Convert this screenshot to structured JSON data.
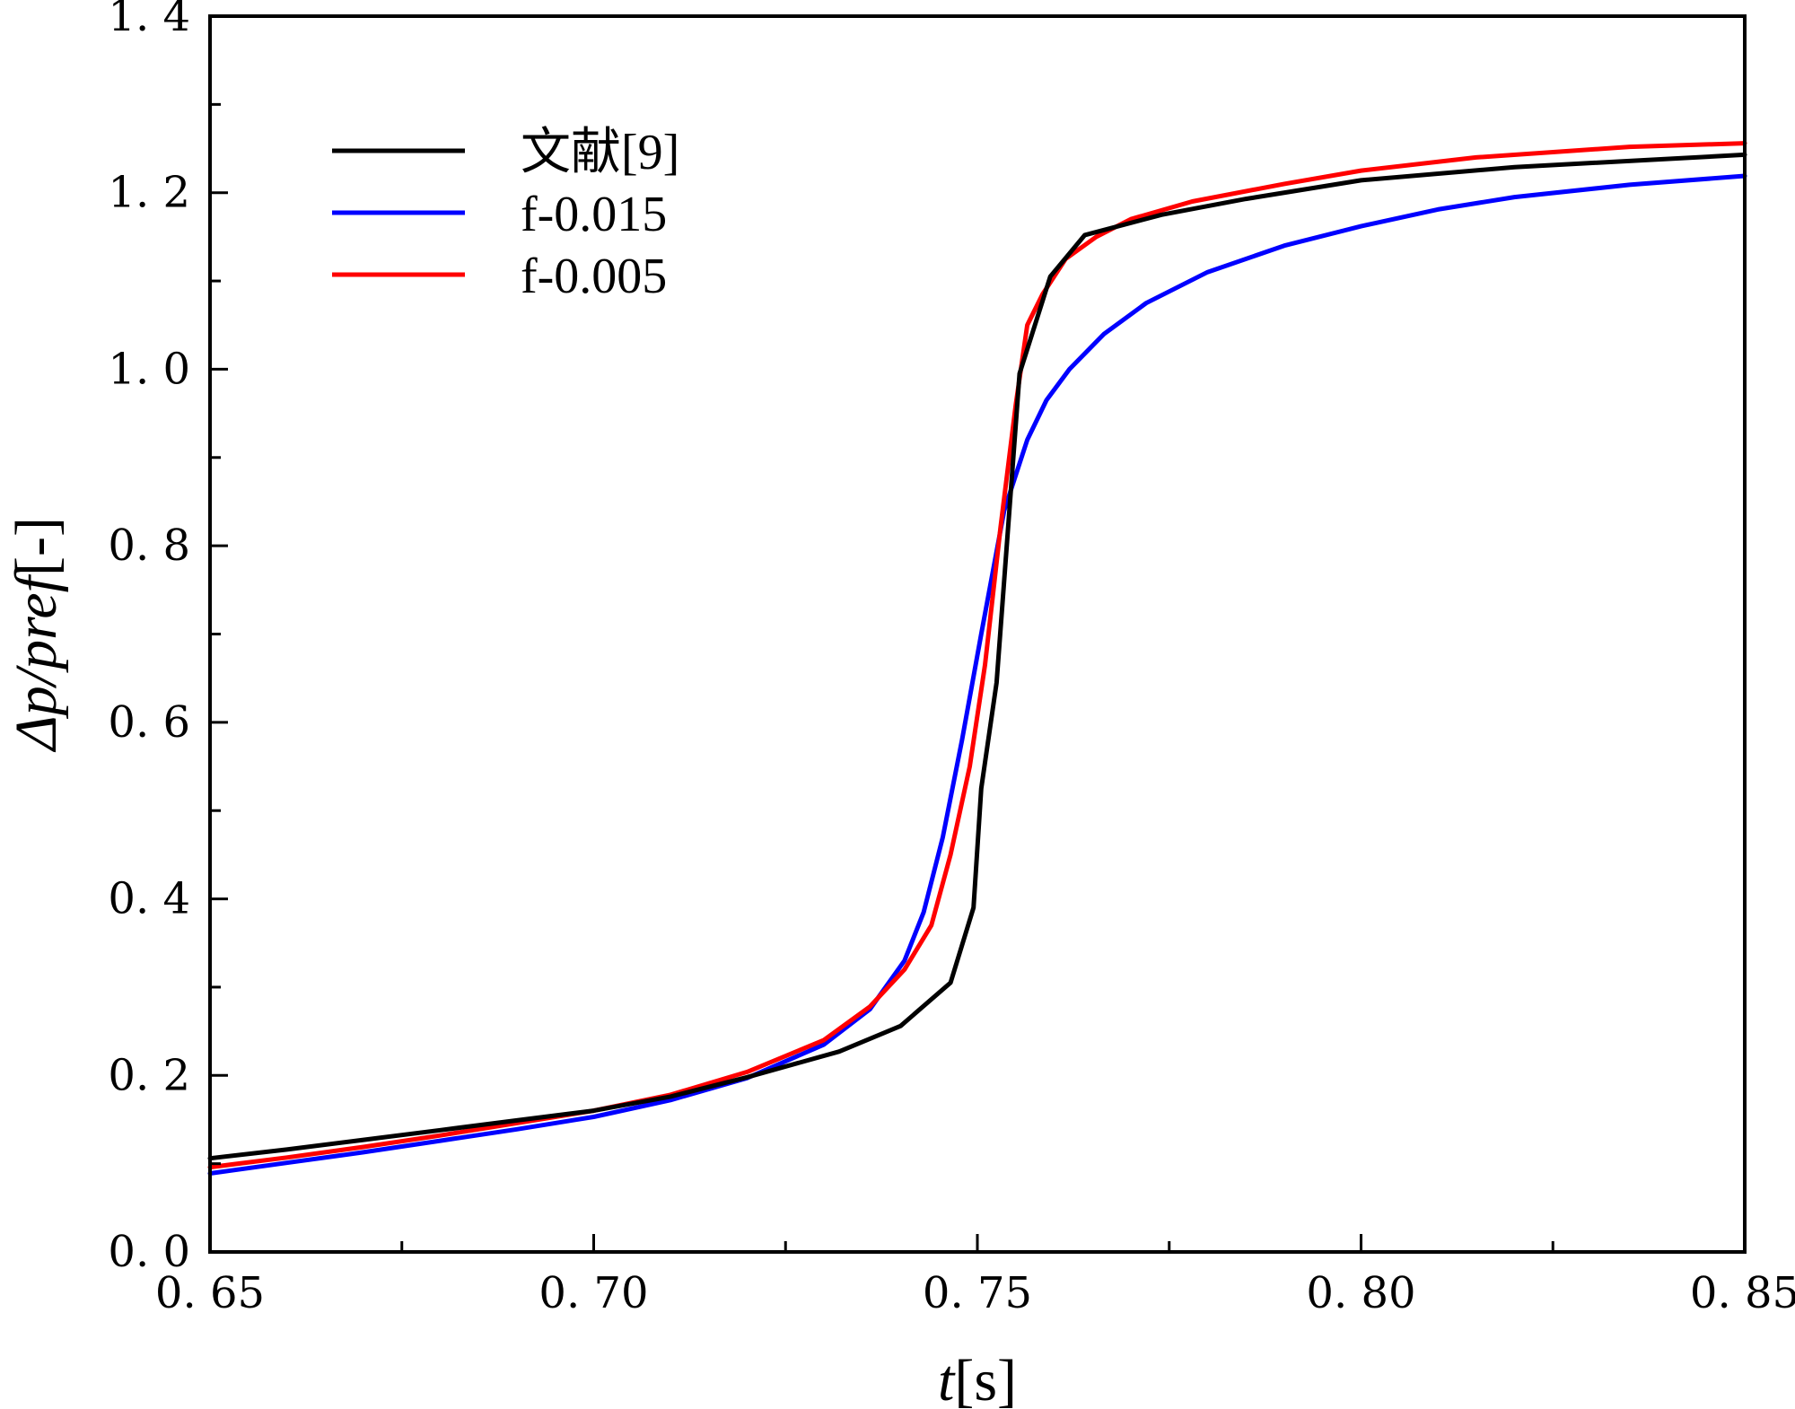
{
  "chart_data": {
    "type": "line",
    "xlabel": {
      "italic": "t",
      "rest": "[s]"
    },
    "ylabel": {
      "italic": "Δp/pref",
      "rest": "[-]"
    },
    "xlim": [
      0.65,
      0.85
    ],
    "ylim": [
      0.0,
      1.4
    ],
    "xticks": [
      0.65,
      0.7,
      0.75,
      0.8,
      0.85
    ],
    "xtick_labels": [
      "0. 65",
      "0. 70",
      "0. 75",
      "0. 80",
      "0. 85"
    ],
    "yticks": [
      0.0,
      0.2,
      0.4,
      0.6,
      0.8,
      1.0,
      1.2,
      1.4
    ],
    "ytick_labels": [
      "0. 0",
      "0. 2",
      "0. 4",
      "0. 6",
      "0. 8",
      "1. 0",
      "1. 2",
      "1. 4"
    ],
    "grid": false,
    "legend_position": "top-left",
    "series": [
      {
        "name": "文献[9]",
        "color": "#000000",
        "x": [
          0.65,
          0.66,
          0.67,
          0.68,
          0.69,
          0.7,
          0.71,
          0.72,
          0.732,
          0.74,
          0.7465,
          0.7495,
          0.7505,
          0.7525,
          0.7555,
          0.7595,
          0.764,
          0.774,
          0.785,
          0.8,
          0.82,
          0.85
        ],
        "y": [
          0.106,
          0.116,
          0.127,
          0.138,
          0.149,
          0.16,
          0.176,
          0.198,
          0.227,
          0.256,
          0.305,
          0.39,
          0.525,
          0.645,
          0.995,
          1.105,
          1.152,
          1.175,
          1.193,
          1.214,
          1.229,
          1.243
        ]
      },
      {
        "name": "f-0.015",
        "color": "#0000ff",
        "x": [
          0.65,
          0.66,
          0.67,
          0.68,
          0.69,
          0.7,
          0.71,
          0.72,
          0.73,
          0.736,
          0.7405,
          0.743,
          0.7455,
          0.748,
          0.7505,
          0.7535,
          0.7565,
          0.759,
          0.762,
          0.7665,
          0.772,
          0.78,
          0.79,
          0.8,
          0.81,
          0.82,
          0.835,
          0.85
        ],
        "y": [
          0.089,
          0.101,
          0.113,
          0.126,
          0.139,
          0.153,
          0.172,
          0.197,
          0.235,
          0.275,
          0.33,
          0.385,
          0.47,
          0.58,
          0.7,
          0.84,
          0.92,
          0.965,
          1.0,
          1.04,
          1.075,
          1.11,
          1.14,
          1.162,
          1.181,
          1.195,
          1.209,
          1.219
        ]
      },
      {
        "name": "f-0.005",
        "color": "#ff0000",
        "x": [
          0.65,
          0.66,
          0.67,
          0.68,
          0.69,
          0.7,
          0.71,
          0.72,
          0.73,
          0.736,
          0.7405,
          0.744,
          0.7465,
          0.749,
          0.751,
          0.753,
          0.755,
          0.7565,
          0.7585,
          0.7615,
          0.7655,
          0.77,
          0.778,
          0.79,
          0.8,
          0.815,
          0.835,
          0.85
        ],
        "y": [
          0.096,
          0.107,
          0.119,
          0.132,
          0.146,
          0.16,
          0.178,
          0.204,
          0.24,
          0.278,
          0.32,
          0.37,
          0.45,
          0.55,
          0.665,
          0.82,
          0.96,
          1.05,
          1.085,
          1.125,
          1.15,
          1.17,
          1.19,
          1.21,
          1.225,
          1.24,
          1.252,
          1.256
        ]
      }
    ]
  }
}
